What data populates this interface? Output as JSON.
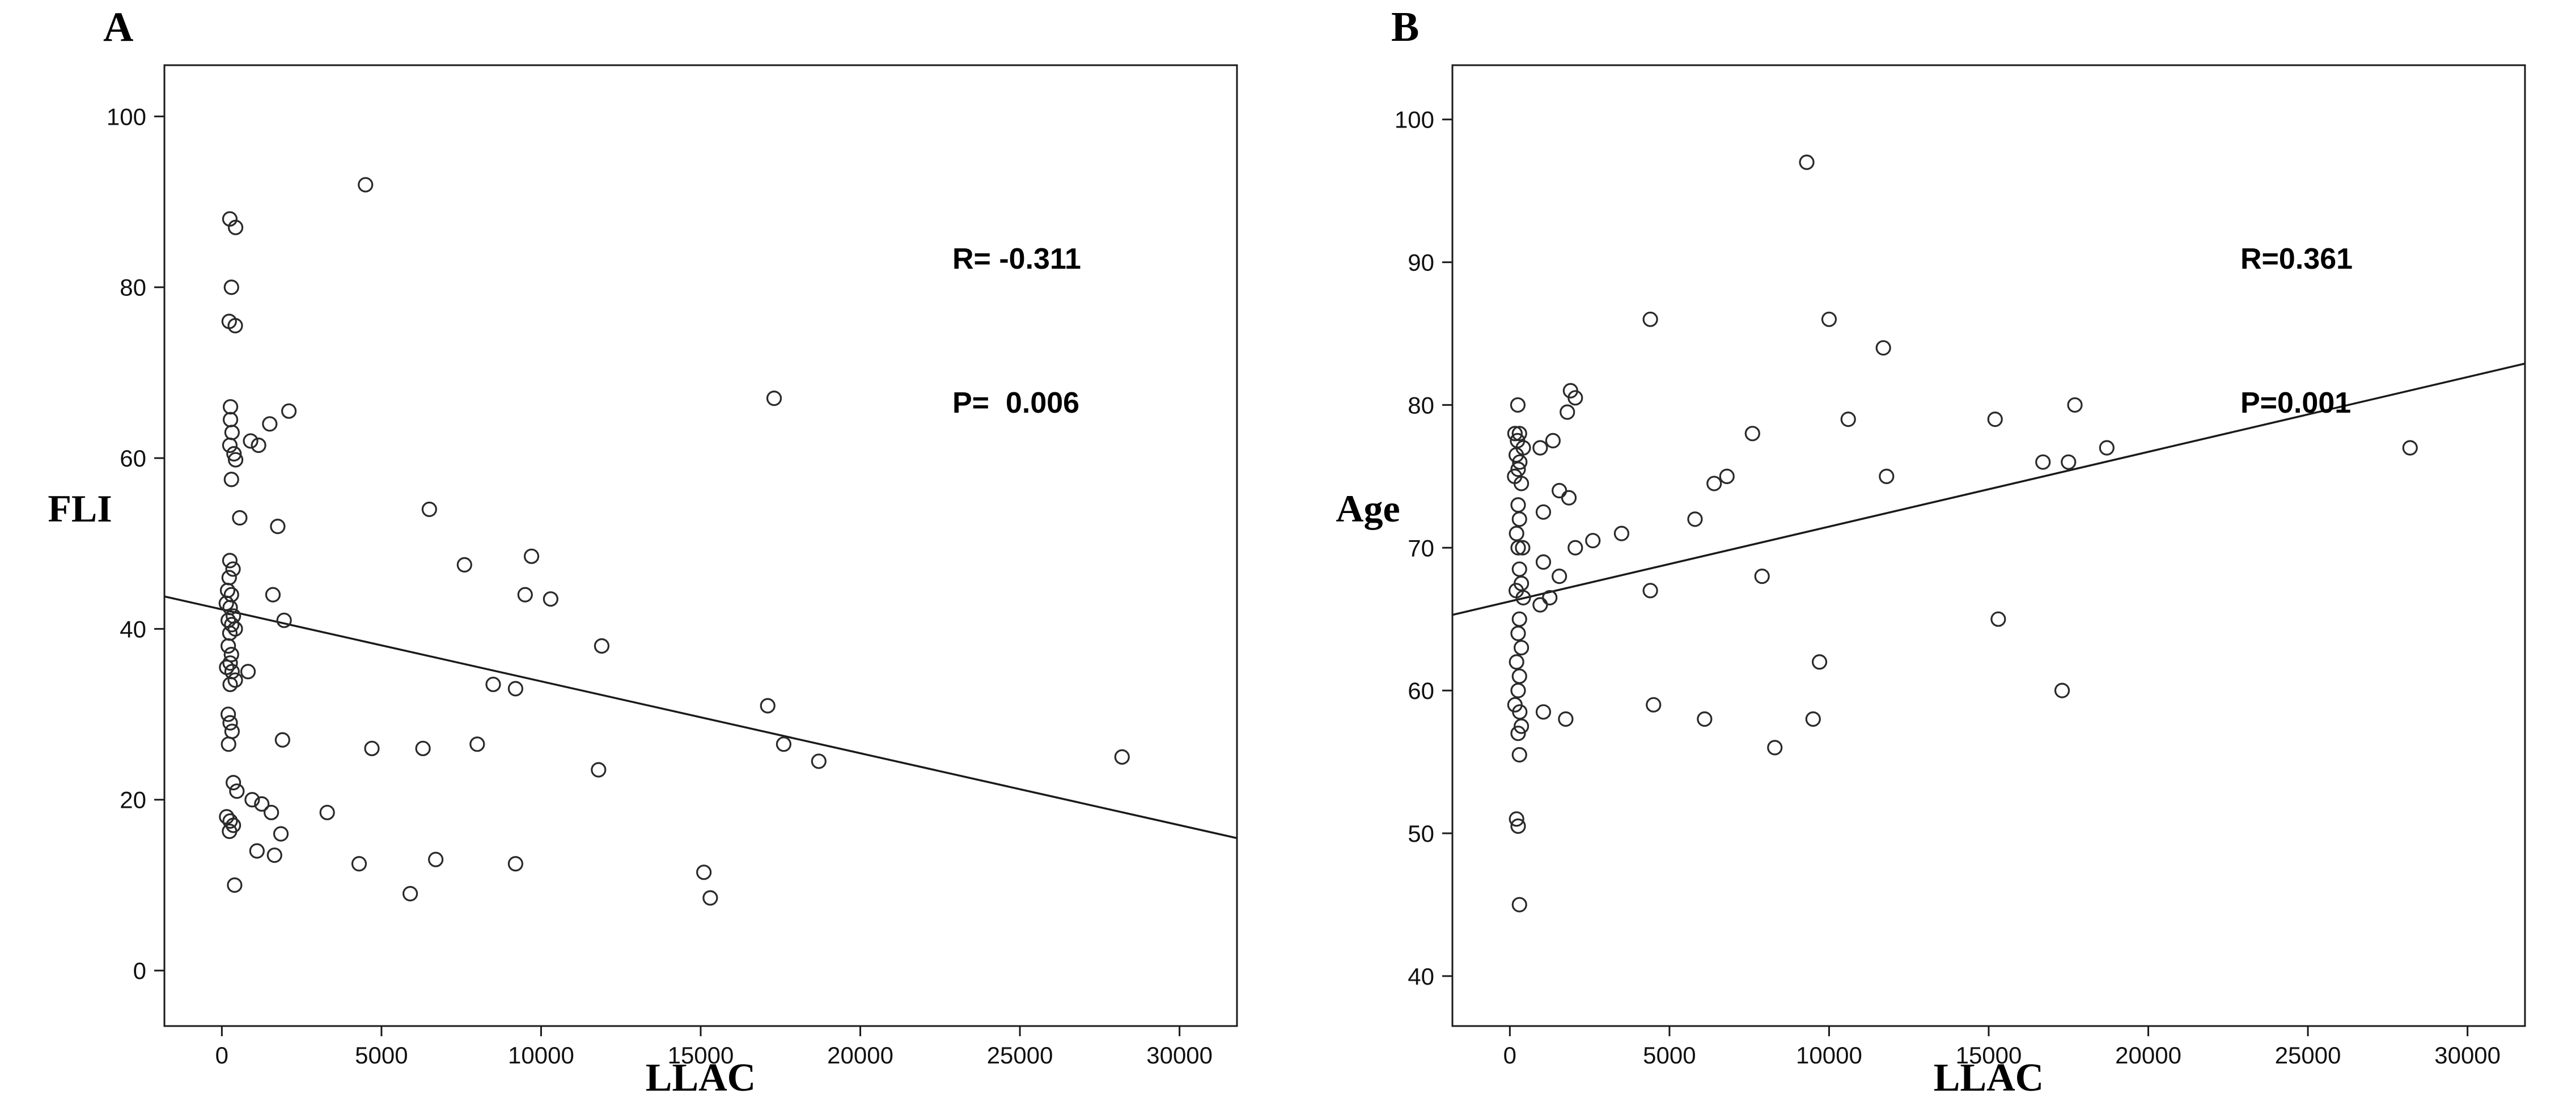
{
  "figure": {
    "background": "#ffffff",
    "axis_color": "#1a1a1a",
    "marker_color": "#2a2a2a",
    "panels": [
      {
        "panel_label": "A",
        "ylabel": "FLI",
        "xlabel": "LLAC",
        "r_label": "R= -0.311",
        "p_label": "P=  0.006"
      },
      {
        "panel_label": "B",
        "ylabel": "Age",
        "xlabel": "LLAC",
        "r_label": "R=0.361",
        "p_label": "P=0.001"
      }
    ]
  },
  "chart_data": [
    {
      "type": "scatter",
      "title": "A",
      "xlabel": "LLAC",
      "ylabel": "FLI",
      "legend": "none",
      "grid": false,
      "marker": "open-circle",
      "xlim": [
        -1800,
        31800
      ],
      "ylim": [
        -6.5,
        106
      ],
      "xticks": [
        0,
        5000,
        10000,
        15000,
        20000,
        25000,
        30000
      ],
      "yticks": [
        0,
        20,
        40,
        60,
        80,
        100
      ],
      "annotations": [
        "R= -0.311",
        "P=  0.006"
      ],
      "trendline": {
        "x1": -1800,
        "y1": 43.8,
        "x2": 31800,
        "y2": 15.5
      },
      "points": [
        [
          250,
          88
        ],
        [
          430,
          87
        ],
        [
          300,
          80
        ],
        [
          230,
          76
        ],
        [
          420,
          75.5
        ],
        [
          270,
          66
        ],
        [
          270,
          64.5
        ],
        [
          320,
          63
        ],
        [
          250,
          61.5
        ],
        [
          380,
          60.5
        ],
        [
          430,
          59.8
        ],
        [
          300,
          57.5
        ],
        [
          560,
          53
        ],
        [
          250,
          48
        ],
        [
          350,
          47
        ],
        [
          230,
          46
        ],
        [
          180,
          44.5
        ],
        [
          300,
          44
        ],
        [
          140,
          43
        ],
        [
          260,
          42.5
        ],
        [
          360,
          41.5
        ],
        [
          200,
          41
        ],
        [
          310,
          40.5
        ],
        [
          420,
          40
        ],
        [
          250,
          39.5
        ],
        [
          200,
          38
        ],
        [
          300,
          37
        ],
        [
          260,
          36
        ],
        [
          150,
          35.5
        ],
        [
          320,
          35
        ],
        [
          420,
          34
        ],
        [
          260,
          33.5
        ],
        [
          200,
          30
        ],
        [
          260,
          29
        ],
        [
          320,
          28
        ],
        [
          210,
          26.5
        ],
        [
          360,
          22
        ],
        [
          470,
          21
        ],
        [
          150,
          18
        ],
        [
          260,
          17.5
        ],
        [
          360,
          17
        ],
        [
          240,
          16.3
        ],
        [
          400,
          10
        ],
        [
          1500,
          64
        ],
        [
          2100,
          65.5
        ],
        [
          900,
          62
        ],
        [
          1150,
          61.5
        ],
        [
          1750,
          52
        ],
        [
          1600,
          44
        ],
        [
          1950,
          41
        ],
        [
          820,
          35
        ],
        [
          1900,
          27
        ],
        [
          950,
          20
        ],
        [
          1250,
          19.5
        ],
        [
          1550,
          18.5
        ],
        [
          1850,
          16
        ],
        [
          1100,
          14
        ],
        [
          1650,
          13.5
        ],
        [
          4500,
          92
        ],
        [
          17300,
          67
        ],
        [
          6500,
          54
        ],
        [
          7600,
          47.5
        ],
        [
          9700,
          48.5
        ],
        [
          9500,
          44
        ],
        [
          10300,
          43.5
        ],
        [
          11900,
          38
        ],
        [
          8500,
          33.5
        ],
        [
          9200,
          33
        ],
        [
          11800,
          23.5
        ],
        [
          17100,
          31
        ],
        [
          17600,
          26.5
        ],
        [
          18700,
          24.5
        ],
        [
          28200,
          25
        ],
        [
          4700,
          26
        ],
        [
          6300,
          26
        ],
        [
          8000,
          26.5
        ],
        [
          3300,
          18.5
        ],
        [
          4300,
          12.5
        ],
        [
          6700,
          13
        ],
        [
          9200,
          12.5
        ],
        [
          5900,
          9
        ],
        [
          15100,
          11.5
        ],
        [
          15300,
          8.5
        ]
      ]
    },
    {
      "type": "scatter",
      "title": "B",
      "xlabel": "LLAC",
      "ylabel": "Age",
      "legend": "none",
      "grid": false,
      "marker": "open-circle",
      "xlim": [
        -1800,
        31800
      ],
      "ylim": [
        36.5,
        103.8
      ],
      "xticks": [
        0,
        5000,
        10000,
        15000,
        20000,
        25000,
        30000
      ],
      "yticks": [
        40,
        50,
        60,
        70,
        80,
        90,
        100
      ],
      "annotations": [
        "R=0.361",
        "P=0.001"
      ],
      "trendline": {
        "x1": -1800,
        "y1": 65.3,
        "x2": 31800,
        "y2": 82.9
      },
      "points": [
        [
          250,
          80
        ],
        [
          160,
          78
        ],
        [
          300,
          78
        ],
        [
          240,
          77.5
        ],
        [
          420,
          77
        ],
        [
          200,
          76.5
        ],
        [
          310,
          76
        ],
        [
          260,
          75.5
        ],
        [
          150,
          75
        ],
        [
          360,
          74.5
        ],
        [
          260,
          73
        ],
        [
          300,
          72
        ],
        [
          210,
          71
        ],
        [
          400,
          70
        ],
        [
          260,
          70
        ],
        [
          300,
          68.5
        ],
        [
          360,
          67.5
        ],
        [
          200,
          67
        ],
        [
          420,
          66.5
        ],
        [
          300,
          65
        ],
        [
          260,
          64
        ],
        [
          360,
          63
        ],
        [
          210,
          62
        ],
        [
          300,
          61
        ],
        [
          260,
          60
        ],
        [
          160,
          59
        ],
        [
          310,
          58.5
        ],
        [
          360,
          57.5
        ],
        [
          260,
          57
        ],
        [
          300,
          55.5
        ],
        [
          210,
          51
        ],
        [
          260,
          50.5
        ],
        [
          300,
          45
        ],
        [
          1900,
          81
        ],
        [
          2050,
          80.5
        ],
        [
          1800,
          79.5
        ],
        [
          950,
          77
        ],
        [
          1350,
          77.5
        ],
        [
          1550,
          74
        ],
        [
          1850,
          73.5
        ],
        [
          1050,
          72.5
        ],
        [
          2600,
          70.5
        ],
        [
          2050,
          70
        ],
        [
          1050,
          69
        ],
        [
          1550,
          68
        ],
        [
          1250,
          66.5
        ],
        [
          950,
          66
        ],
        [
          1750,
          58
        ],
        [
          1050,
          58.5
        ],
        [
          9300,
          97
        ],
        [
          4400,
          86
        ],
        [
          10000,
          86
        ],
        [
          11700,
          84
        ],
        [
          10600,
          79
        ],
        [
          15200,
          79
        ],
        [
          17700,
          80
        ],
        [
          7600,
          78
        ],
        [
          6800,
          75
        ],
        [
          11800,
          75
        ],
        [
          16700,
          76
        ],
        [
          17500,
          76
        ],
        [
          18700,
          77
        ],
        [
          28200,
          77
        ],
        [
          3500,
          71
        ],
        [
          5800,
          72
        ],
        [
          6400,
          74.5
        ],
        [
          4400,
          67
        ],
        [
          7900,
          68
        ],
        [
          9700,
          62
        ],
        [
          15300,
          65
        ],
        [
          4500,
          59
        ],
        [
          6100,
          58
        ],
        [
          9500,
          58
        ],
        [
          8300,
          56
        ],
        [
          17300,
          60
        ]
      ]
    }
  ]
}
